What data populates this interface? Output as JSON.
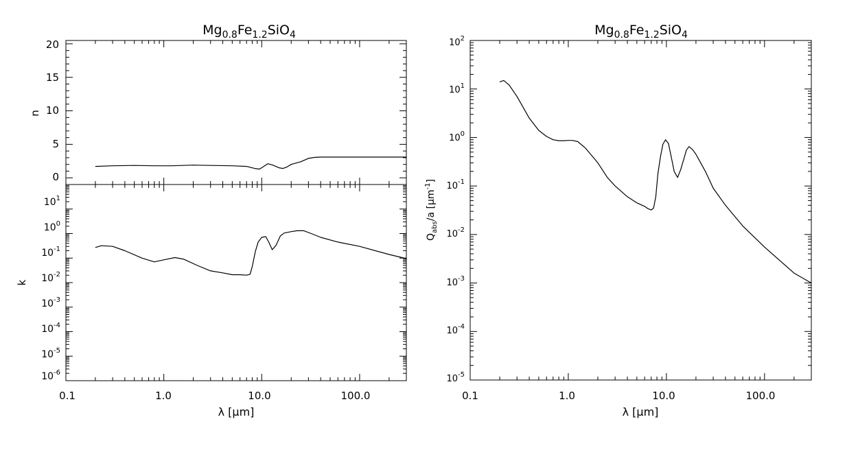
{
  "chart_data": [
    {
      "type": "line",
      "title": {
        "base": "Mg",
        "sub1": "0.8",
        "mid": "Fe",
        "sub2": "1.2",
        "tail": "SiO",
        "sub3": "4"
      },
      "xlabel": {
        "lambda": "λ",
        "unit": "[μm]"
      },
      "x_scale": "log",
      "xlim": [
        0.1,
        300
      ],
      "x_ticklabels": [
        "0.1",
        "1.0",
        "10.0",
        "100.0"
      ],
      "panels": [
        {
          "id": "n",
          "ylabel": "n",
          "y_scale": "linear",
          "ylim": [
            -1,
            20.5
          ],
          "y_ticklabels": [
            "0",
            "5",
            "10",
            "15",
            "20"
          ],
          "series": [
            {
              "x": [
                0.2,
                0.3,
                0.5,
                0.8,
                1.2,
                2,
                3,
                5,
                7,
                8.5,
                9.5,
                10.5,
                11.5,
                13,
                15,
                16.5,
                18,
                20,
                25,
                30,
                35,
                40,
                60,
                100,
                200,
                300
              ],
              "y": [
                1.7,
                1.8,
                1.85,
                1.8,
                1.8,
                1.9,
                1.85,
                1.8,
                1.7,
                1.4,
                1.3,
                1.7,
                2.1,
                1.9,
                1.5,
                1.4,
                1.6,
                2.0,
                2.4,
                2.9,
                3.05,
                3.1,
                3.1,
                3.1,
                3.1,
                3.1
              ]
            }
          ]
        },
        {
          "id": "k",
          "ylabel": "k",
          "y_scale": "log",
          "ylim": [
            1e-06,
            100
          ],
          "y_ticklabels": [
            {
              "base": "10",
              "exp": "-6"
            },
            {
              "base": "10",
              "exp": "-5"
            },
            {
              "base": "10",
              "exp": "-4"
            },
            {
              "base": "10",
              "exp": "-3"
            },
            {
              "base": "10",
              "exp": "-2"
            },
            {
              "base": "10",
              "exp": "-1"
            },
            {
              "base": "10",
              "exp": "0"
            },
            {
              "base": "10",
              "exp": "1"
            }
          ],
          "series": [
            {
              "x": [
                0.2,
                0.23,
                0.3,
                0.4,
                0.6,
                0.8,
                1.0,
                1.3,
                1.6,
                2.2,
                3,
                4,
                5,
                6,
                7,
                7.6,
                8,
                8.6,
                9.2,
                10,
                11,
                11.8,
                12.8,
                14,
                15.5,
                17,
                20,
                23,
                27,
                32,
                40,
                60,
                100,
                200,
                300
              ],
              "y": [
                0.27,
                0.32,
                0.3,
                0.2,
                0.1,
                0.07,
                0.085,
                0.105,
                0.09,
                0.05,
                0.03,
                0.025,
                0.021,
                0.021,
                0.02,
                0.022,
                0.045,
                0.18,
                0.45,
                0.7,
                0.75,
                0.45,
                0.22,
                0.33,
                0.8,
                1.05,
                1.2,
                1.3,
                1.3,
                1.0,
                0.7,
                0.45,
                0.3,
                0.14,
                0.095
              ]
            }
          ]
        }
      ]
    },
    {
      "type": "line",
      "title": {
        "base": "Mg",
        "sub1": "0.8",
        "mid": "Fe",
        "sub2": "1.2",
        "tail": "SiO",
        "sub3": "4"
      },
      "xlabel": {
        "lambda": "λ",
        "unit": "[μm]"
      },
      "ylabel": {
        "q": "Q",
        "sub": "abs",
        "rest": "/a [μm",
        "exp": "-1",
        "close": "]"
      },
      "x_scale": "log",
      "y_scale": "log",
      "xlim": [
        0.1,
        300
      ],
      "ylim": [
        1e-05,
        100
      ],
      "x_ticklabels": [
        "0.1",
        "1.0",
        "10.0",
        "100.0"
      ],
      "y_ticklabels": [
        {
          "base": "10",
          "exp": "-5"
        },
        {
          "base": "10",
          "exp": "-4"
        },
        {
          "base": "10",
          "exp": "-3"
        },
        {
          "base": "10",
          "exp": "-2"
        },
        {
          "base": "10",
          "exp": "-1"
        },
        {
          "base": "10",
          "exp": "0"
        },
        {
          "base": "10",
          "exp": "1"
        },
        {
          "base": "10",
          "exp": "2"
        }
      ],
      "series": [
        {
          "x": [
            0.2,
            0.22,
            0.25,
            0.3,
            0.4,
            0.5,
            0.6,
            0.7,
            0.8,
            0.9,
            1.0,
            1.1,
            1.25,
            1.5,
            2,
            2.5,
            3,
            4,
            5,
            6,
            6.5,
            7,
            7.4,
            7.8,
            8.2,
            8.7,
            9.2,
            9.8,
            10.5,
            11.2,
            12,
            13,
            14,
            15,
            16,
            17,
            18.5,
            20,
            25,
            30,
            40,
            60,
            100,
            200,
            300
          ],
          "y": [
            14,
            15,
            12,
            7,
            2.5,
            1.4,
            1.05,
            0.9,
            0.86,
            0.86,
            0.87,
            0.87,
            0.82,
            0.6,
            0.3,
            0.15,
            0.1,
            0.06,
            0.045,
            0.038,
            0.034,
            0.032,
            0.035,
            0.06,
            0.18,
            0.4,
            0.72,
            0.9,
            0.75,
            0.4,
            0.2,
            0.15,
            0.22,
            0.35,
            0.55,
            0.65,
            0.56,
            0.45,
            0.2,
            0.09,
            0.04,
            0.015,
            0.0055,
            0.0016,
            0.001
          ]
        }
      ]
    }
  ]
}
